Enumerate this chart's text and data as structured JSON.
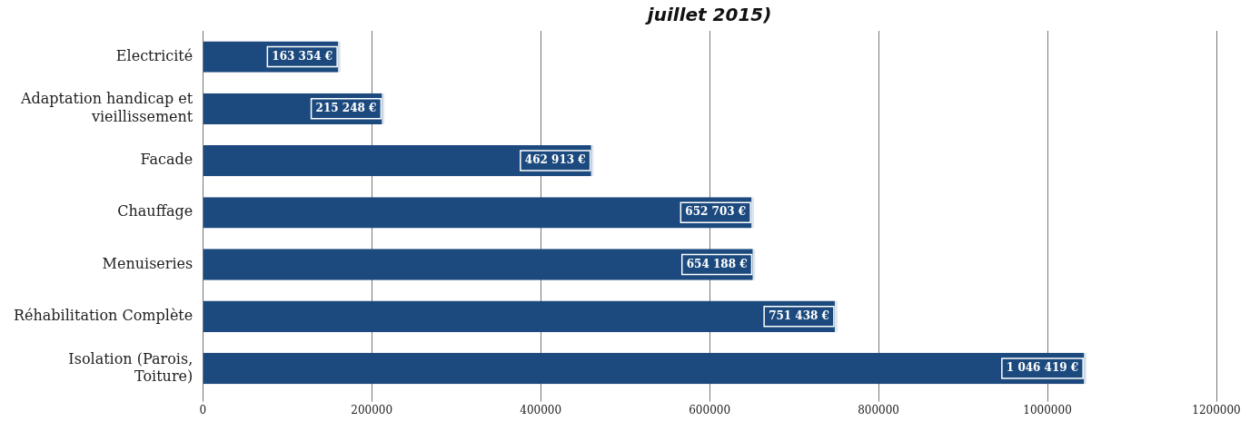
{
  "chart_data": {
    "type": "bar",
    "orientation": "horizontal",
    "title": "juillet 2015)",
    "categories": [
      "Electricité",
      "Adaptation handicap et vieillissement",
      "Facade",
      "Chauffage",
      "Menuiseries",
      "Réhabilitation Complète",
      "Isolation (Parois, Toiture)"
    ],
    "values": [
      163354,
      215248,
      462913,
      652703,
      654188,
      751438,
      1046419
    ],
    "value_labels": [
      "163 354 €",
      "215 248 €",
      "462 913 €",
      "652 703 €",
      "654 188 €",
      "751 438 €",
      "1 046 419 €"
    ],
    "color": "#1c4a7e",
    "xlim": [
      0,
      1200000
    ],
    "xticks": [
      0,
      200000,
      400000,
      600000,
      800000,
      1000000,
      1200000
    ],
    "grid": "x",
    "legend": false
  }
}
